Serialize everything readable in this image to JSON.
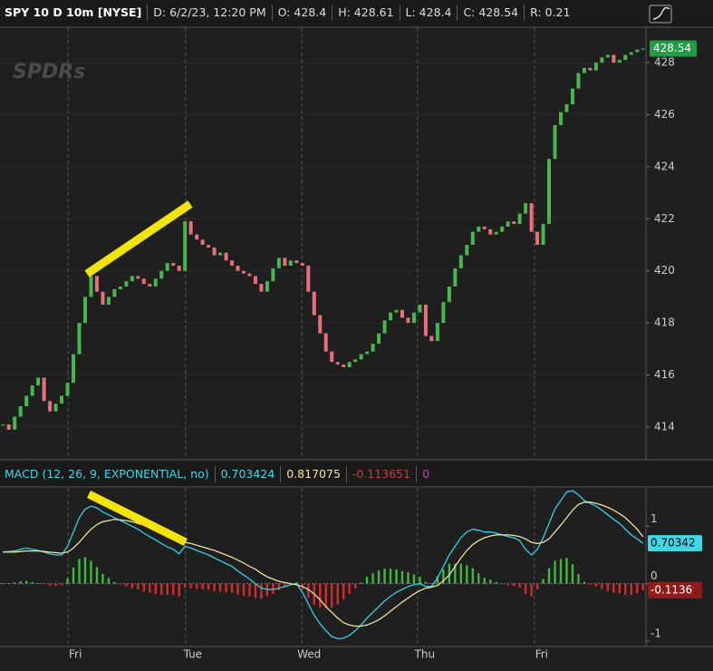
{
  "header": {
    "symbol": "SPY 10 D 10m [NYSE]",
    "date": "D: 6/2/23, 12:20 PM",
    "open": "O: 428.4",
    "high": "H: 428.61",
    "low": "L: 428.4",
    "close": "C: 428.54",
    "range": "R: 0.21",
    "watermark": "SPDRs"
  },
  "chart_data": [
    {
      "type": "candlestick",
      "xlim": [
        0,
        110
      ],
      "ylim": [
        412.78,
        429.36
      ],
      "yticks": [
        414,
        416,
        418,
        420,
        422,
        424,
        426,
        428
      ],
      "grid": true,
      "up_color": "#45b84f",
      "down_color": "#e8707a",
      "values": [
        414.1,
        413.9,
        414.4,
        414.8,
        415.2,
        415.6,
        415.9,
        415.0,
        414.6,
        414.9,
        415.2,
        415.7,
        416.8,
        418.0,
        419.0,
        419.8,
        419.2,
        418.7,
        419.0,
        419.3,
        419.4,
        419.6,
        419.8,
        419.7,
        419.5,
        419.4,
        419.7,
        420.0,
        420.3,
        420.2,
        420.0,
        421.9,
        421.4,
        421.2,
        421.0,
        420.9,
        420.6,
        420.7,
        420.4,
        420.2,
        420.0,
        419.9,
        419.8,
        419.5,
        419.2,
        419.6,
        420.1,
        420.5,
        420.2,
        420.4,
        420.3,
        420.2,
        419.2,
        418.3,
        417.6,
        416.9,
        416.5,
        416.4,
        416.3,
        416.5,
        416.6,
        416.8,
        416.9,
        417.2,
        417.6,
        418.1,
        418.4,
        418.5,
        418.2,
        418.0,
        418.4,
        418.7,
        417.5,
        417.3,
        418.0,
        418.8,
        419.4,
        420.1,
        420.6,
        421.0,
        421.5,
        421.7,
        421.6,
        421.4,
        421.5,
        421.7,
        421.9,
        421.8,
        422.2,
        422.6,
        421.5,
        421.0,
        421.8,
        424.3,
        425.6,
        426.1,
        426.4,
        427.0,
        427.6,
        427.8,
        427.7,
        428.0,
        428.2,
        428.3,
        428.0,
        428.1,
        428.3,
        428.4,
        428.5,
        428.54
      ],
      "last_label": {
        "value": 428.54,
        "label": "428.54"
      },
      "last_label_color": "#1f9e45"
    },
    {
      "type": "macd",
      "title": "MACD (12, 26, 9, EXPONENTIAL, no)",
      "readouts": [
        "0.703424",
        "0.817075",
        "-0.113651",
        "0"
      ],
      "readout_colors": [
        "#3fd6e6",
        "#f3e3a6",
        "#d23a3a",
        "#c040c0"
      ],
      "xlim": [
        0,
        110
      ],
      "ylim": [
        -1.08,
        1.67
      ],
      "yticks": [
        1,
        0,
        -1
      ],
      "zero_color": "#d040c8",
      "xticks": [
        {
          "value": 11.6,
          "label": "Fri"
        },
        {
          "value": 31.6,
          "label": "Tue"
        },
        {
          "value": 51.4,
          "label": "Wed"
        },
        {
          "value": 71.1,
          "label": "Thu"
        },
        {
          "value": 91,
          "label": "Fri"
        }
      ],
      "series": [
        {
          "name": "MACD",
          "color": "#32d2e6",
          "values": [
            0.55,
            0.56,
            0.57,
            0.6,
            0.62,
            0.6,
            0.58,
            0.55,
            0.52,
            0.5,
            0.5,
            0.65,
            0.9,
            1.15,
            1.3,
            1.35,
            1.32,
            1.25,
            1.2,
            1.15,
            1.1,
            1.05,
            1.0,
            0.95,
            0.88,
            0.82,
            0.76,
            0.7,
            0.64,
            0.6,
            0.52,
            0.65,
            0.62,
            0.58,
            0.54,
            0.5,
            0.45,
            0.4,
            0.35,
            0.3,
            0.22,
            0.15,
            0.08,
            0.0,
            -0.08,
            -0.1,
            -0.1,
            -0.08,
            -0.05,
            -0.02,
            0.0,
            -0.15,
            -0.35,
            -0.55,
            -0.7,
            -0.82,
            -0.92,
            -0.96,
            -0.95,
            -0.9,
            -0.82,
            -0.72,
            -0.6,
            -0.5,
            -0.4,
            -0.3,
            -0.22,
            -0.15,
            -0.1,
            -0.05,
            -0.02,
            0.0,
            -0.05,
            -0.05,
            0.1,
            0.3,
            0.5,
            0.65,
            0.8,
            0.9,
            0.95,
            0.93,
            0.9,
            0.9,
            0.88,
            0.85,
            0.82,
            0.8,
            0.75,
            0.6,
            0.5,
            0.6,
            0.8,
            1.05,
            1.3,
            1.45,
            1.6,
            1.62,
            1.55,
            1.45,
            1.4,
            1.35,
            1.28,
            1.2,
            1.12,
            1.05,
            0.95,
            0.85,
            0.78,
            0.70342
          ]
        },
        {
          "name": "Avg",
          "color": "#f0e0a4",
          "values": [
            0.55,
            0.55,
            0.55,
            0.56,
            0.57,
            0.57,
            0.57,
            0.56,
            0.55,
            0.54,
            0.53,
            0.55,
            0.62,
            0.72,
            0.84,
            0.95,
            1.03,
            1.08,
            1.1,
            1.12,
            1.11,
            1.1,
            1.08,
            1.05,
            1.02,
            0.98,
            0.94,
            0.89,
            0.84,
            0.79,
            0.74,
            0.72,
            0.7,
            0.67,
            0.64,
            0.61,
            0.58,
            0.54,
            0.5,
            0.46,
            0.41,
            0.36,
            0.3,
            0.25,
            0.18,
            0.12,
            0.08,
            0.04,
            0.02,
            0.0,
            -0.02,
            -0.05,
            -0.1,
            -0.18,
            -0.28,
            -0.4,
            -0.5,
            -0.6,
            -0.68,
            -0.72,
            -0.74,
            -0.74,
            -0.72,
            -0.68,
            -0.63,
            -0.56,
            -0.48,
            -0.4,
            -0.32,
            -0.25,
            -0.18,
            -0.12,
            -0.08,
            -0.06,
            -0.03,
            0.05,
            0.15,
            0.3,
            0.45,
            0.58,
            0.68,
            0.75,
            0.8,
            0.83,
            0.85,
            0.85,
            0.85,
            0.84,
            0.82,
            0.78,
            0.72,
            0.7,
            0.72,
            0.78,
            0.9,
            1.02,
            1.15,
            1.28,
            1.38,
            1.42,
            1.42,
            1.4,
            1.37,
            1.33,
            1.28,
            1.22,
            1.15,
            1.05,
            0.95,
            0.817
          ]
        }
      ],
      "histogram": {
        "up_color": "#3fb840",
        "down_color": "#d42c2c",
        "values": [
          0,
          0.01,
          0.02,
          0.04,
          0.05,
          0.03,
          0.01,
          -0.01,
          -0.03,
          -0.04,
          -0.03,
          0.1,
          0.28,
          0.43,
          0.46,
          0.4,
          0.29,
          0.17,
          0.1,
          0.03,
          -0.01,
          -0.05,
          -0.08,
          -0.1,
          -0.14,
          -0.16,
          -0.18,
          -0.19,
          -0.2,
          -0.19,
          -0.22,
          -0.07,
          -0.08,
          -0.09,
          -0.1,
          -0.11,
          -0.13,
          -0.14,
          -0.15,
          -0.16,
          -0.19,
          -0.21,
          -0.22,
          -0.25,
          -0.26,
          -0.22,
          -0.18,
          -0.12,
          -0.07,
          -0.02,
          0.02,
          -0.1,
          -0.25,
          -0.37,
          -0.42,
          -0.42,
          -0.42,
          -0.36,
          -0.27,
          -0.18,
          -0.08,
          0.02,
          0.12,
          0.18,
          0.23,
          0.26,
          0.26,
          0.25,
          0.22,
          0.2,
          0.16,
          0.12,
          0.03,
          0.01,
          0.13,
          0.25,
          0.35,
          0.35,
          0.35,
          0.32,
          0.27,
          0.18,
          0.1,
          0.07,
          0.03,
          0,
          -0.03,
          -0.04,
          -0.07,
          -0.18,
          -0.22,
          -0.1,
          0.08,
          0.27,
          0.4,
          0.43,
          0.45,
          0.34,
          0.17,
          0.03,
          -0.02,
          -0.05,
          -0.09,
          -0.13,
          -0.16,
          -0.17,
          -0.2,
          -0.2,
          -0.17,
          -0.1136
        ]
      },
      "value_boxes": [
        {
          "value": 0.70342,
          "label": "0.70342",
          "color": "#3fd6e6",
          "text_color": "#000000"
        },
        {
          "value": -0.1136,
          "label": "-0.1136",
          "color": "#8e1c1c",
          "text_color": "#ffffff"
        }
      ]
    }
  ]
}
